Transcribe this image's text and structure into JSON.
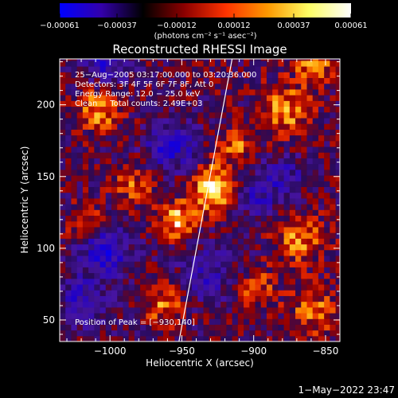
{
  "chart_data": {
    "type": "heatmap",
    "title": "Reconstructed RHESSI Image",
    "xlabel": "Heliocentric X (arcsec)",
    "ylabel": "Heliocentric Y (arcsec)",
    "xlim": [
      -1035,
      -840
    ],
    "ylim": [
      35,
      232
    ],
    "xticks": [
      -1000,
      -950,
      -900,
      -850
    ],
    "xtick_labels": [
      "−1000",
      "−950",
      "−900",
      "−850"
    ],
    "yticks": [
      50,
      100,
      150,
      200
    ],
    "ytick_labels": [
      "50",
      "100",
      "150",
      "200"
    ],
    "colorbar": {
      "range": [
        -0.00061,
        0.00061
      ],
      "ticks": [
        -0.00061,
        -0.00037,
        -0.00012,
        0.00012,
        0.00037,
        0.00061
      ],
      "tick_labels": [
        "−0.00061",
        "−0.00037",
        "−0.00012",
        "0.00012",
        "0.00037",
        "0.00061"
      ],
      "unit_label": "(photons cm⁻² s⁻¹ asec⁻²)",
      "colors": [
        "#0000ff",
        "#3300aa",
        "#000000",
        "#8c0000",
        "#ff3300",
        "#ff9900",
        "#ffff66",
        "#ffffff"
      ]
    },
    "annotations": {
      "line1": "25−Aug−2005 03:17:00.000 to 03:20:36.000",
      "line2": "Detectors: 3F 4F 5F 6F 7F 8F, Att 0",
      "line3": "Energy Range: 12.0 − 25.0 keV",
      "line4": "Clean     Total counts: 2.49E+03",
      "peak": "Position of Peak = [−930,140]"
    },
    "peak": [
      -930,
      140
    ],
    "limb": [
      [
        -952,
        35
      ],
      [
        -915,
        232
      ]
    ],
    "hotspots": [
      {
        "x": -930,
        "y": 140,
        "v": 1.0,
        "s": 10
      },
      {
        "x": -955,
        "y": 118,
        "v": 0.75,
        "s": 9
      },
      {
        "x": -1010,
        "y": 195,
        "v": 0.55,
        "s": 11
      },
      {
        "x": -985,
        "y": 142,
        "v": 0.4,
        "s": 10
      },
      {
        "x": -880,
        "y": 195,
        "v": 0.6,
        "s": 12
      },
      {
        "x": -860,
        "y": 225,
        "v": 0.55,
        "s": 9
      },
      {
        "x": -870,
        "y": 105,
        "v": 0.55,
        "s": 12
      },
      {
        "x": -965,
        "y": 60,
        "v": 0.5,
        "s": 10
      },
      {
        "x": -1020,
        "y": 118,
        "v": 0.45,
        "s": 8
      },
      {
        "x": -860,
        "y": 55,
        "v": 0.45,
        "s": 12
      },
      {
        "x": -900,
        "y": 70,
        "v": 0.4,
        "s": 10
      },
      {
        "x": -915,
        "y": 170,
        "v": 0.5,
        "s": 9
      }
    ],
    "coldspots": [
      {
        "x": -1005,
        "y": 230,
        "v": -0.6,
        "s": 12
      },
      {
        "x": -1005,
        "y": 95,
        "v": -0.65,
        "s": 12
      },
      {
        "x": -1020,
        "y": 60,
        "v": -0.5,
        "s": 12
      },
      {
        "x": -960,
        "y": 170,
        "v": -0.6,
        "s": 12
      },
      {
        "x": -900,
        "y": 135,
        "v": -0.4,
        "s": 12
      },
      {
        "x": -935,
        "y": 80,
        "v": -0.4,
        "s": 14
      },
      {
        "x": -880,
        "y": 150,
        "v": -0.35,
        "s": 10
      }
    ]
  },
  "footer": {
    "timestamp": "1−May−2022 23:47"
  }
}
